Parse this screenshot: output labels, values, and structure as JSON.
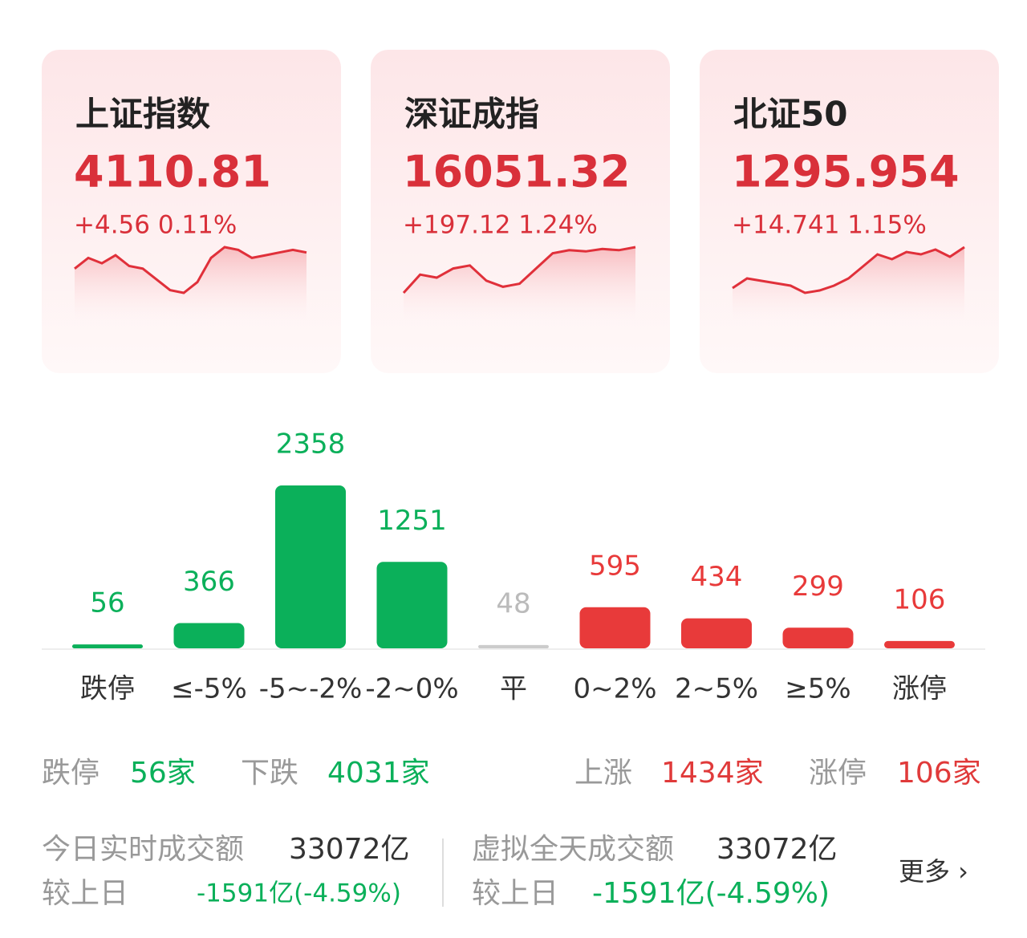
{
  "cards": [
    {
      "name": "上证指数",
      "value": "4110.81",
      "change": "+4.56 0.11%",
      "trend": [
        4108,
        4112,
        4110,
        4113,
        4109,
        4108,
        4104,
        4100,
        4099,
        4103,
        4112,
        4116,
        4115,
        4112,
        4113,
        4114,
        4115,
        4114
      ]
    },
    {
      "name": "深证成指",
      "value": "16051.32",
      "change": "+197.12 1.24%",
      "trend": [
        15980,
        16010,
        16005,
        16020,
        16025,
        16000,
        15990,
        15995,
        16020,
        16045,
        16050,
        16048,
        16052,
        16050,
        16055
      ]
    },
    {
      "name": "北证50",
      "value": "1295.954",
      "change": "+14.741 1.15%",
      "trend": [
        1282,
        1286,
        1285,
        1284,
        1283,
        1280,
        1281,
        1283,
        1286,
        1291,
        1296,
        1294,
        1297,
        1296,
        1298,
        1295,
        1299
      ]
    }
  ],
  "chart_data": {
    "type": "bar",
    "categories": [
      "跌停",
      "≤-5%",
      "-5~-2%",
      "-2~0%",
      "平",
      "0~2%",
      "2~5%",
      "≥5%",
      "涨停"
    ],
    "values": [
      56,
      366,
      2358,
      1251,
      48,
      595,
      434,
      299,
      106
    ],
    "colors": [
      "#0bb05a",
      "#0bb05a",
      "#0bb05a",
      "#0bb05a",
      "#cccccc",
      "#e83a3a",
      "#e83a3a",
      "#e83a3a",
      "#e83a3a"
    ]
  },
  "summary": [
    {
      "label": "跌停",
      "value": "56家",
      "color": "#0bb05a"
    },
    {
      "label": "下跌",
      "value": "4031家",
      "color": "#0bb05a"
    },
    {
      "label": "上涨",
      "value": "1434家",
      "color": "#e03a3a"
    },
    {
      "label": "涨停",
      "value": "106家",
      "color": "#e03a3a"
    }
  ],
  "turnover": [
    {
      "label": "今日实时成交额",
      "value": "33072亿",
      "compare_label": "较上日",
      "compare_value": "-1591亿(-4.59%)"
    },
    {
      "label": "虚拟全天成交额",
      "value": "33072亿",
      "compare_label": "较上日",
      "compare_value": "-1591亿(-4.59%)"
    }
  ],
  "more": "更多 ›"
}
